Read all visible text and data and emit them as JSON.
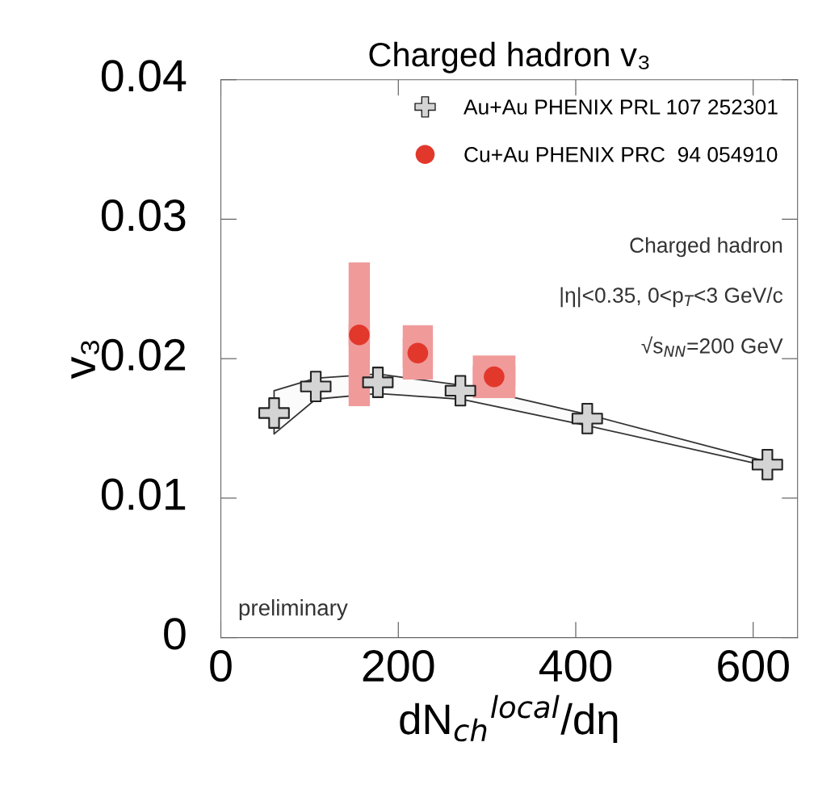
{
  "chart_data": {
    "type": "scatter",
    "title": "Charged hadron v₃",
    "xlabel": "dN$_{ch}$$^{local}$/dη",
    "ylabel": "v₃",
    "xlim": [
      0,
      650
    ],
    "ylim": [
      0,
      0.04
    ],
    "xticks": [
      0,
      200,
      400,
      600
    ],
    "yticks": [
      0,
      0.01,
      0.02,
      0.03,
      0.04
    ],
    "grid": false,
    "legend": "top right",
    "series": [
      {
        "name": "Au+Au PHENIX PRL 107 252301",
        "color": "#d4d4d4",
        "marker": "cross",
        "x": [
          60,
          107,
          177,
          270,
          413,
          616
        ],
        "values": [
          0.0161,
          0.018,
          0.0183,
          0.0177,
          0.0157,
          0.0124
        ],
        "lower": [
          0.0146,
          0.0171,
          0.0175,
          0.0171,
          0.0152,
          0.0123
        ],
        "upper": [
          0.0177,
          0.0186,
          0.0189,
          0.0181,
          0.016,
          0.0126
        ]
      },
      {
        "name": "Cu+Au PHENIX PRC  94 054910",
        "color": "#e2382c",
        "marker": "circle",
        "x": [
          156,
          222,
          308
        ],
        "values": [
          0.0217,
          0.0204,
          0.0187
        ],
        "errors": [
          [
            0.0166,
            0.0269
          ],
          [
            0.0185,
            0.0224
          ],
          [
            0.0181,
            0.0195
          ]
        ],
        "xerrors": [
          12,
          17,
          24
        ]
      }
    ],
    "annotations": [
      "Charged hadron",
      "|η|<0.35, 0<p$_{T}$<3 GeV/c",
      "√s$_{NN}$=200 GeV",
      "preliminary"
    ]
  }
}
